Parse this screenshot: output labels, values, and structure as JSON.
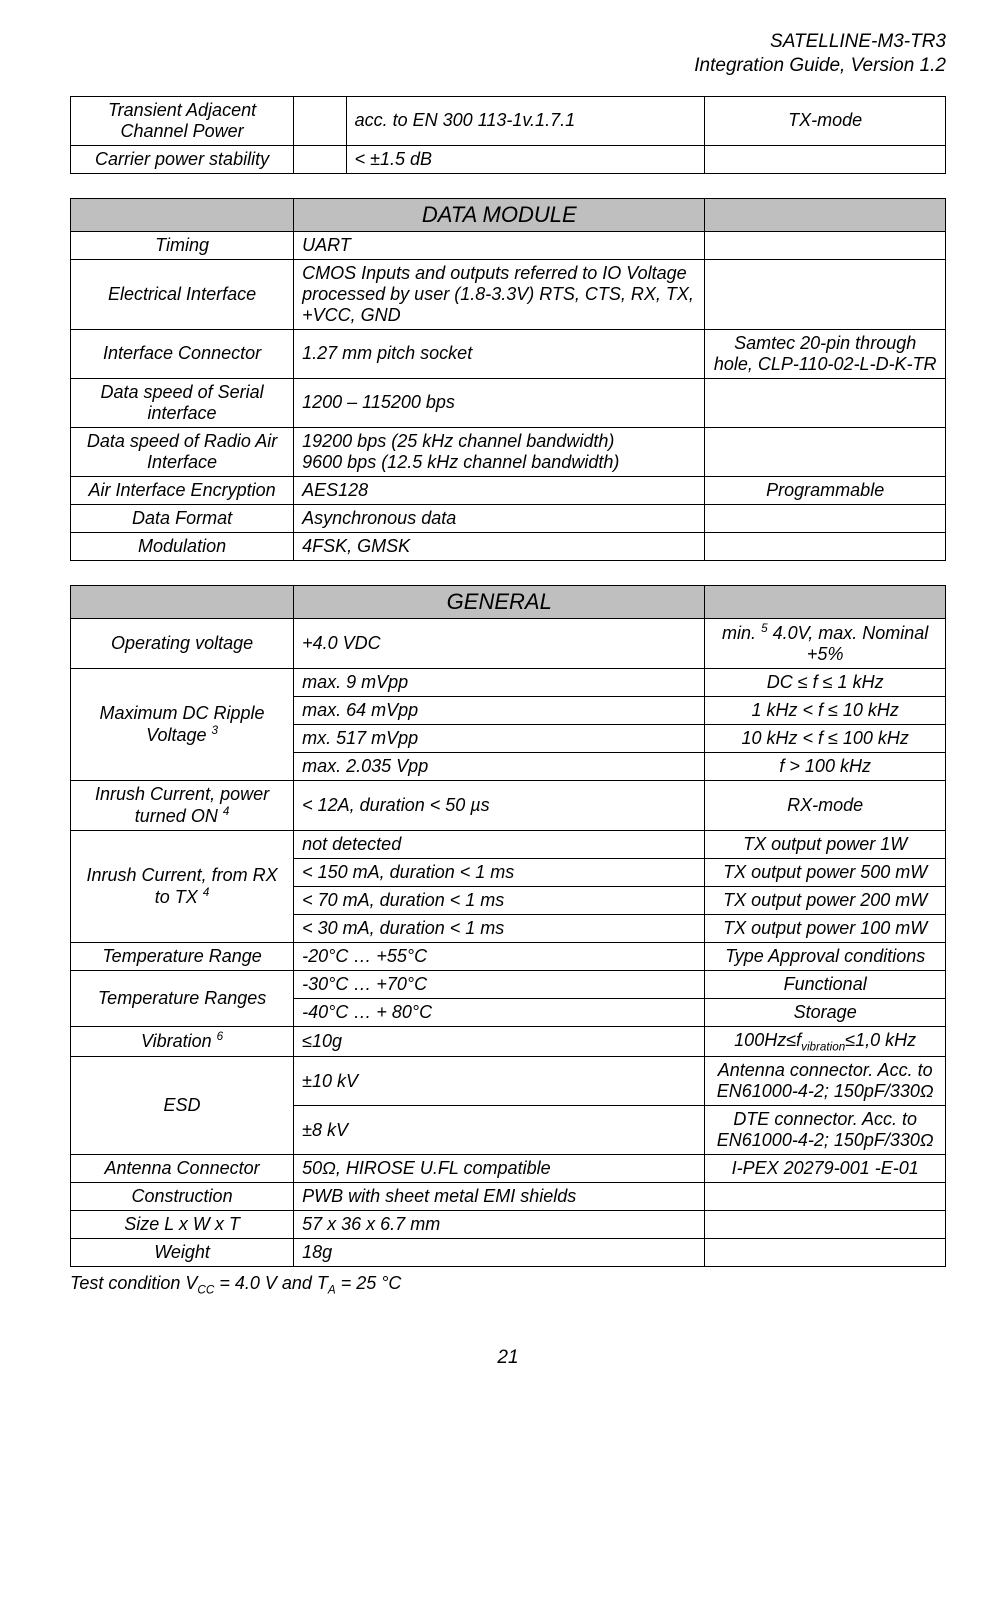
{
  "header": {
    "product": "SATELLINE-M3-TR3",
    "doc": "Integration Guide, Version 1.2"
  },
  "table1": {
    "rows": [
      {
        "c1": "Transient Adjacent Channel Power",
        "c2": "",
        "c3": "acc. to EN 300 113-1v.1.7.1",
        "c4": "TX-mode"
      },
      {
        "c1": "Carrier power stability",
        "c2": "",
        "c3": "< ±1.5 dB",
        "c4": ""
      }
    ]
  },
  "table2": {
    "title": "DATA MODULE",
    "rows": [
      {
        "c1": "Timing",
        "c2": "UART",
        "c3": ""
      },
      {
        "c1": "Electrical Interface",
        "c2": "CMOS Inputs and outputs referred to IO Voltage processed by user (1.8-3.3V) RTS, CTS, RX, TX,\n+VCC, GND",
        "c3": ""
      },
      {
        "c1": "Interface Connector",
        "c2_left": "1.27 mm pitch socket",
        "c3": "Samtec 20-pin through hole, CLP-110-02-L-D-K-TR"
      },
      {
        "c1": "Data speed of Serial interface",
        "c2_left": "1200 – 115200 bps",
        "c3": ""
      },
      {
        "c1": "Data speed of Radio Air Interface",
        "c2": "19200 bps (25 kHz channel bandwidth)\n9600 bps (12.5 kHz channel bandwidth)",
        "c3": ""
      },
      {
        "c1": "Air Interface Encryption",
        "c2": "AES128",
        "c3": "Programmable"
      },
      {
        "c1": "Data Format",
        "c2": "Asynchronous data",
        "c3": ""
      },
      {
        "c1": "Modulation",
        "c2": "4FSK, GMSK",
        "c3": ""
      }
    ]
  },
  "table3": {
    "title": "GENERAL",
    "groups": [
      {
        "c1": "Operating voltage",
        "rows": [
          {
            "c2": "+4.0 VDC",
            "c3": "min. <sup>5</sup> 4.0V, max. Nominal +5%"
          }
        ]
      },
      {
        "c1": "Maximum DC Ripple Voltage <sup>3</sup>",
        "rows": [
          {
            "c2": "max. 9 mVpp",
            "c3": "DC ≤ f ≤ 1 kHz"
          },
          {
            "c2": "max. 64 mVpp",
            "c3": "1 kHz < f ≤ 10 kHz"
          },
          {
            "c2": "mx. 517 mVpp",
            "c3": "10 kHz < f ≤ 100 kHz"
          },
          {
            "c2": "max. 2.035 Vpp",
            "c3": "f > 100 kHz"
          }
        ]
      },
      {
        "c1": "Inrush Current, power turned ON <sup>4</sup>",
        "rows": [
          {
            "c2": "< 12A, duration < 50 µs",
            "c3": "RX-mode"
          }
        ]
      },
      {
        "c1": "Inrush Current, from RX to TX <sup>4</sup>",
        "rows": [
          {
            "c2": "not detected",
            "c3": "TX output power 1W"
          },
          {
            "c2": "< 150 mA, duration < 1 ms",
            "c3": "TX output power 500 mW"
          },
          {
            "c2": "< 70 mA, duration < 1 ms",
            "c3": "TX output power 200 mW"
          },
          {
            "c2": "< 30 mA, duration < 1 ms",
            "c3": "TX output power 100 mW"
          }
        ]
      },
      {
        "c1": "Temperature Range",
        "rows": [
          {
            "c2": "-20°C … +55°C",
            "c3": "Type Approval conditions"
          }
        ]
      },
      {
        "c1": "Temperature Ranges",
        "rows": [
          {
            "c2": "-30°C … +70°C",
            "c3": "Functional"
          },
          {
            "c2": "-40°C … + 80°C",
            "c3": "Storage"
          }
        ]
      },
      {
        "c1": "Vibration <sup>6</sup>",
        "rows": [
          {
            "c2": "≤10g",
            "c3": "100Hz≤f<sub>vibration</sub>≤1,0 kHz"
          }
        ]
      },
      {
        "c1": "ESD",
        "rows": [
          {
            "c2": "±10 kV",
            "c3": "Antenna connector. Acc. to EN61000-4-2; 150pF/330Ω"
          },
          {
            "c2": "±8 kV",
            "c3": "DTE connector. Acc. to EN61000-4-2; 150pF/330Ω"
          }
        ]
      },
      {
        "c1": "Antenna Connector",
        "rows": [
          {
            "c2": "50Ω, HIROSE U.FL compatible",
            "c3": "I-PEX 20279-001 -E-01"
          }
        ]
      },
      {
        "c1": "Construction",
        "rows": [
          {
            "c2": "PWB with sheet metal EMI shields",
            "c3": ""
          }
        ]
      },
      {
        "c1": "Size L x W x T",
        "rows": [
          {
            "c2": "57 x 36 x 6.7 mm",
            "c3": ""
          }
        ]
      },
      {
        "c1": "Weight",
        "rows": [
          {
            "c2": "18g",
            "c3": ""
          }
        ]
      }
    ]
  },
  "footnote_html": "Test condition V<sub>CC</sub> = 4.0 V and T<sub>A</sub> = 25 °C",
  "pagenum": "21"
}
